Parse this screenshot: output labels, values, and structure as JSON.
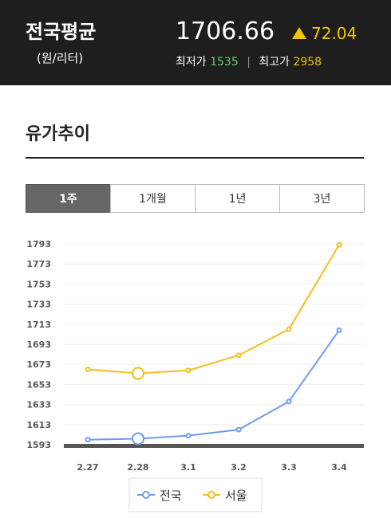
{
  "header": {
    "title": "전국평균",
    "unit": "(원/리터)",
    "price": "1706.66",
    "change": "72.04",
    "low_label": "최저가",
    "low": "1535",
    "high_label": "최고가",
    "high": "2958"
  },
  "section_title": "유가추이",
  "tabs": [
    "1주",
    "1개월",
    "1년",
    "3년"
  ],
  "active_tab": 0,
  "chart_data": {
    "type": "line",
    "categories": [
      "2.27",
      "2.28",
      "3.1",
      "3.2",
      "3.3",
      "3.4"
    ],
    "series": [
      {
        "name": "전국",
        "color": "#6f9cf0",
        "values": [
          1598,
          1599,
          1602,
          1608,
          1636,
          1707
        ]
      },
      {
        "name": "서울",
        "color": "#f5bd1f",
        "values": [
          1668,
          1664,
          1667,
          1682,
          1708,
          1792
        ]
      }
    ],
    "ylim": [
      1593,
      1793
    ],
    "yticks": [
      1593,
      1613,
      1633,
      1653,
      1673,
      1693,
      1713,
      1733,
      1753,
      1773,
      1793
    ],
    "grid": true,
    "highlight_index": 1
  }
}
